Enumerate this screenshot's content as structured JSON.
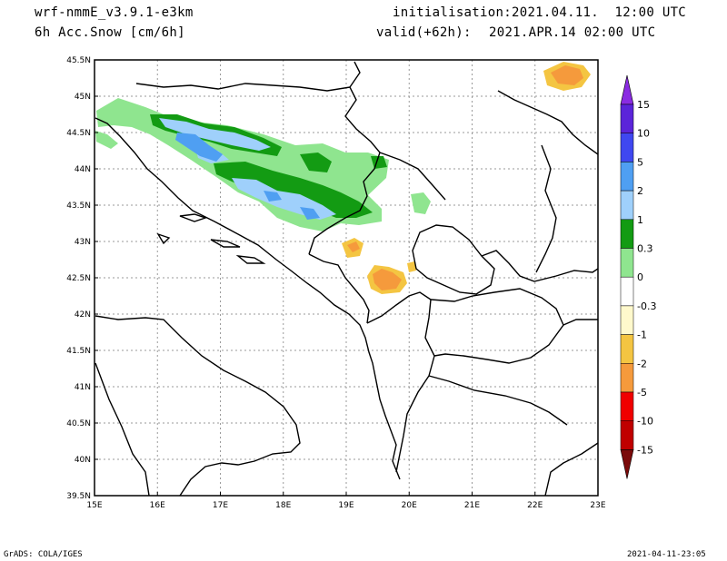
{
  "header": {
    "model": "wrf-nmmE_v3.9.1-e3km",
    "variable": "6h Acc.Snow [cm/6h]",
    "init_label": "initialisation:",
    "init_value": "2021.04.11.  12:00 UTC",
    "valid_label": "valid(+62h):",
    "valid_value": "2021.APR.14 02:00 UTC"
  },
  "axes": {
    "lon_labels": [
      "15E",
      "16E",
      "17E",
      "18E",
      "19E",
      "20E",
      "21E",
      "22E",
      "23E"
    ],
    "lat_labels": [
      "45.5N",
      "45N",
      "44.5N",
      "44N",
      "43.5N",
      "43N",
      "42.5N",
      "42N",
      "41.5N",
      "41N",
      "40.5N",
      "40N",
      "39.5N"
    ]
  },
  "colorbar": {
    "labels": [
      "15",
      "10",
      "5",
      "2",
      "1",
      "0.3",
      "0",
      "-0.3",
      "-1",
      "-2",
      "-5",
      "-10",
      "-15"
    ],
    "colors": [
      "#5b24d9",
      "#3f47f0",
      "#4f9ff2",
      "#9fd0fb",
      "#139b13",
      "#8fe58f",
      "#ffffff",
      "#fff9cc",
      "#f4c542",
      "#f59a3c",
      "#f00000",
      "#c00000",
      "#8b0000"
    ],
    "top_arrow_color": "#8a2be2",
    "bottom_arrow_color": "#7a0a0a"
  },
  "footer": {
    "left": "GrADS: COLA/IGES",
    "right": "2021-04-11-23:05"
  }
}
